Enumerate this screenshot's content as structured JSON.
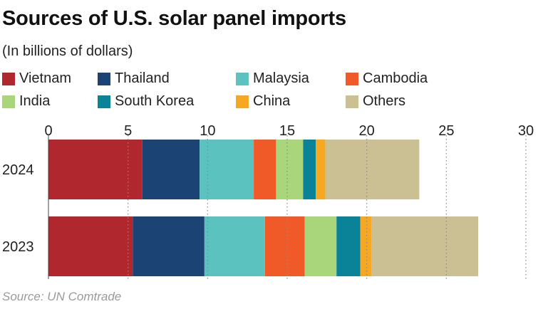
{
  "chart_data": {
    "type": "bar",
    "orientation": "horizontal",
    "stacked": true,
    "title": "Sources of U.S. solar panel imports",
    "subtitle": "(In billions of dollars)",
    "source": "Source: UN Comtrade",
    "categories": [
      "2024",
      "2023"
    ],
    "xlim": [
      0,
      30
    ],
    "xticks": [
      "0",
      "5",
      "10",
      "15",
      "20",
      "25",
      "30"
    ],
    "grid": "dotted vertical",
    "legend_position": "top",
    "series": [
      {
        "name": "Vietnam",
        "color": "#b0272e",
        "values": [
          5.9,
          5.3
        ]
      },
      {
        "name": "Thailand",
        "color": "#1b4373",
        "values": [
          3.6,
          4.5
        ]
      },
      {
        "name": "Malaysia",
        "color": "#5cc2bf",
        "values": [
          3.4,
          3.8
        ]
      },
      {
        "name": "Cambodia",
        "color": "#f05a28",
        "values": [
          1.4,
          2.5
        ]
      },
      {
        "name": "India",
        "color": "#a9d67b",
        "values": [
          1.7,
          2.0
        ]
      },
      {
        "name": "South Korea",
        "color": "#0a8398",
        "values": [
          0.8,
          1.5
        ]
      },
      {
        "name": "China",
        "color": "#f7a823",
        "values": [
          0.6,
          0.7
        ]
      },
      {
        "name": "Others",
        "color": "#cbbf94",
        "values": [
          5.9,
          6.7
        ]
      }
    ]
  }
}
